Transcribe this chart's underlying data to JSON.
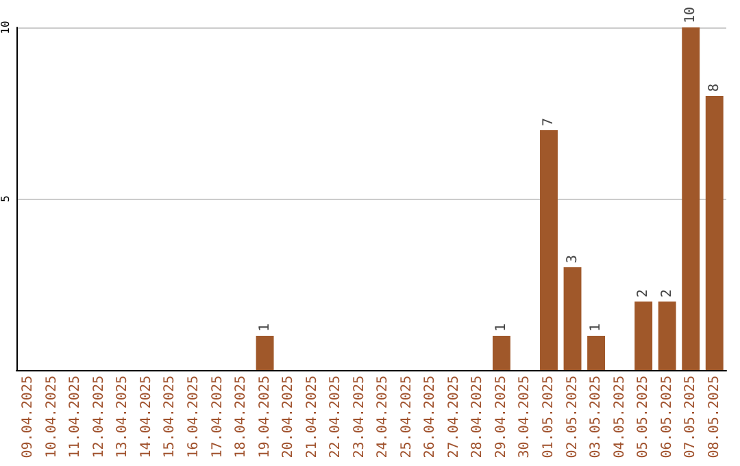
{
  "chart_data": {
    "type": "bar",
    "categories": [
      "09.04.2025",
      "10.04.2025",
      "11.04.2025",
      "12.04.2025",
      "13.04.2025",
      "14.04.2025",
      "15.04.2025",
      "16.04.2025",
      "17.04.2025",
      "18.04.2025",
      "19.04.2025",
      "20.04.2025",
      "21.04.2025",
      "22.04.2025",
      "23.04.2025",
      "24.04.2025",
      "25.04.2025",
      "26.04.2025",
      "27.04.2025",
      "28.04.2025",
      "29.04.2025",
      "30.04.2025",
      "01.05.2025",
      "02.05.2025",
      "03.05.2025",
      "04.05.2025",
      "05.05.2025",
      "06.05.2025",
      "07.05.2025",
      "08.05.2025"
    ],
    "values": [
      0,
      0,
      0,
      0,
      0,
      0,
      0,
      0,
      0,
      0,
      1,
      0,
      0,
      0,
      0,
      0,
      0,
      0,
      0,
      0,
      1,
      0,
      7,
      3,
      1,
      0,
      2,
      2,
      10,
      8
    ],
    "value_labels": [
      null,
      null,
      null,
      null,
      null,
      null,
      null,
      null,
      null,
      null,
      "1",
      null,
      null,
      null,
      null,
      null,
      null,
      null,
      null,
      null,
      "1",
      null,
      "7",
      "3",
      "1",
      null,
      "2",
      "2",
      "10",
      "8"
    ],
    "color": "#a0582a",
    "ylim": [
      0,
      10
    ],
    "yticks": [
      5,
      10
    ],
    "grid": "y"
  }
}
